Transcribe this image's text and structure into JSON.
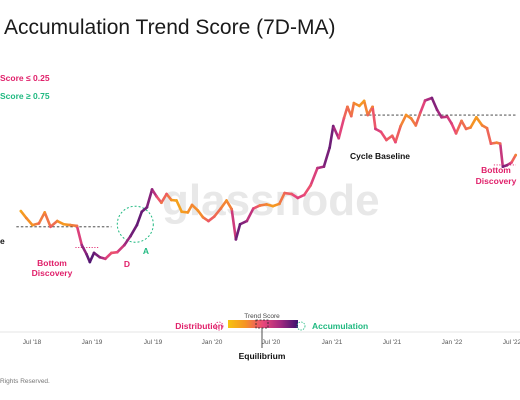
{
  "chart_data": {
    "type": "line",
    "title": "Accumulation Trend Score (7D-MA)",
    "xlabel": "",
    "ylabel": "",
    "y_scale": "log",
    "grid": false,
    "watermark": "glassnode",
    "x_ticks": [
      "Jul '18",
      "Jan '19",
      "Jul '19",
      "Jan '20",
      "Jul '20",
      "Jan '21",
      "Jul '21",
      "Jan '22",
      "Jul '22"
    ],
    "legend": {
      "placement": "top-left",
      "items": [
        {
          "label": "Score ≤ 0.25",
          "color": "#e0206a"
        },
        {
          "label": "Score ≥ 0.75",
          "color": "#1fb980"
        }
      ]
    },
    "colorbar": {
      "title": "Trend Score",
      "left_label": "Distribution",
      "right_label": "Accumulation",
      "center_label": "Equilibrium",
      "stops": [
        "#f6c30f",
        "#f59324",
        "#e9477a",
        "#a3287f",
        "#3a136f"
      ]
    },
    "annotations": [
      {
        "text": "Cycle Baseline",
        "date": "2021-08",
        "color": "#111111"
      },
      {
        "text": "e",
        "date": "2018-05",
        "color": "#111111"
      },
      {
        "text": "Bottom",
        "date": "2018-12",
        "color": "#e0206a"
      },
      {
        "text": "Discovery",
        "date": "2018-12",
        "color": "#e0206a"
      },
      {
        "text": "Bottom",
        "date": "2022-07",
        "color": "#e0206a"
      },
      {
        "text": "Discovery",
        "date": "2022-07",
        "color": "#e0206a"
      },
      {
        "text": "D",
        "date": "2019-03",
        "color": "#e0206a"
      },
      {
        "text": "A",
        "date": "2019-05",
        "color": "#1fb980"
      }
    ],
    "series": [
      {
        "points": [
          [
            "2018-05-15",
            8400,
            0.15
          ],
          [
            "2018-06-01",
            7400,
            0.3
          ],
          [
            "2018-06-20",
            6500,
            0.22
          ],
          [
            "2018-07-10",
            6700,
            0.4
          ],
          [
            "2018-07-28",
            8200,
            0.25
          ],
          [
            "2018-08-15",
            6300,
            0.45
          ],
          [
            "2018-09-05",
            7000,
            0.3
          ],
          [
            "2018-09-25",
            6600,
            0.2
          ],
          [
            "2018-10-15",
            6500,
            0.3
          ],
          [
            "2018-11-05",
            6400,
            0.35
          ],
          [
            "2018-11-20",
            4500,
            0.75
          ],
          [
            "2018-12-05",
            3800,
            0.85
          ],
          [
            "2018-12-15",
            3300,
            0.95
          ],
          [
            "2018-12-28",
            3900,
            0.9
          ],
          [
            "2019-01-15",
            3600,
            0.8
          ],
          [
            "2019-02-01",
            3500,
            0.6
          ],
          [
            "2019-02-20",
            3900,
            0.45
          ],
          [
            "2019-03-10",
            3950,
            0.5
          ],
          [
            "2019-04-01",
            4500,
            0.7
          ],
          [
            "2019-04-20",
            5300,
            0.85
          ],
          [
            "2019-05-10",
            6500,
            0.9
          ],
          [
            "2019-05-25",
            8300,
            0.9
          ],
          [
            "2019-06-10",
            9000,
            0.85
          ],
          [
            "2019-06-26",
            12500,
            0.8
          ],
          [
            "2019-07-10",
            11000,
            0.55
          ],
          [
            "2019-07-25",
            9800,
            0.35
          ],
          [
            "2019-08-10",
            11500,
            0.45
          ],
          [
            "2019-08-25",
            10300,
            0.25
          ],
          [
            "2019-09-10",
            10200,
            0.15
          ],
          [
            "2019-09-26",
            8300,
            0.2
          ],
          [
            "2019-10-15",
            8200,
            0.25
          ],
          [
            "2019-10-28",
            9400,
            0.3
          ],
          [
            "2019-11-15",
            8500,
            0.25
          ],
          [
            "2019-12-01",
            7500,
            0.3
          ],
          [
            "2019-12-18",
            7000,
            0.45
          ],
          [
            "2020-01-05",
            7600,
            0.4
          ],
          [
            "2020-01-25",
            8800,
            0.35
          ],
          [
            "2020-02-12",
            10200,
            0.25
          ],
          [
            "2020-02-28",
            8700,
            0.35
          ],
          [
            "2020-03-12",
            5000,
            0.85
          ],
          [
            "2020-03-25",
            6600,
            0.9
          ],
          [
            "2020-04-15",
            7000,
            0.75
          ],
          [
            "2020-05-05",
            8800,
            0.55
          ],
          [
            "2020-05-25",
            9300,
            0.35
          ],
          [
            "2020-06-15",
            9500,
            0.3
          ],
          [
            "2020-07-05",
            9200,
            0.2
          ],
          [
            "2020-07-25",
            9600,
            0.3
          ],
          [
            "2020-08-10",
            11700,
            0.4
          ],
          [
            "2020-09-01",
            11500,
            0.45
          ],
          [
            "2020-09-20",
            10700,
            0.55
          ],
          [
            "2020-10-10",
            11300,
            0.5
          ],
          [
            "2020-10-30",
            13500,
            0.45
          ],
          [
            "2020-11-20",
            18500,
            0.65
          ],
          [
            "2020-12-10",
            19000,
            0.8
          ],
          [
            "2020-12-28",
            27000,
            0.9
          ],
          [
            "2021-01-08",
            40000,
            0.85
          ],
          [
            "2021-01-25",
            32000,
            0.6
          ],
          [
            "2021-02-10",
            46000,
            0.45
          ],
          [
            "2021-02-21",
            57000,
            0.35
          ],
          [
            "2021-03-05",
            48000,
            0.4
          ],
          [
            "2021-03-13",
            61000,
            0.3
          ],
          [
            "2021-03-30",
            58000,
            0.25
          ],
          [
            "2021-04-14",
            63500,
            0.2
          ],
          [
            "2021-04-25",
            49000,
            0.4
          ],
          [
            "2021-05-10",
            57000,
            0.3
          ],
          [
            "2021-05-19",
            38000,
            0.6
          ],
          [
            "2021-06-05",
            36000,
            0.5
          ],
          [
            "2021-06-22",
            31000,
            0.45
          ],
          [
            "2021-07-10",
            33500,
            0.4
          ],
          [
            "2021-07-20",
            29800,
            0.5
          ],
          [
            "2021-08-05",
            40000,
            0.35
          ],
          [
            "2021-08-22",
            49000,
            0.25
          ],
          [
            "2021-09-07",
            46000,
            0.3
          ],
          [
            "2021-09-21",
            40500,
            0.35
          ],
          [
            "2021-10-05",
            51000,
            0.45
          ],
          [
            "2021-10-20",
            64000,
            0.6
          ],
          [
            "2021-11-10",
            67000,
            0.85
          ],
          [
            "2021-11-26",
            54000,
            0.8
          ],
          [
            "2021-12-10",
            47000,
            0.7
          ],
          [
            "2021-12-28",
            47500,
            0.6
          ],
          [
            "2022-01-10",
            42000,
            0.55
          ],
          [
            "2022-01-24",
            35000,
            0.45
          ],
          [
            "2022-02-10",
            44000,
            0.35
          ],
          [
            "2022-02-24",
            38000,
            0.4
          ],
          [
            "2022-03-10",
            39000,
            0.3
          ],
          [
            "2022-03-28",
            47000,
            0.2
          ],
          [
            "2022-04-15",
            40500,
            0.3
          ],
          [
            "2022-04-30",
            38500,
            0.35
          ],
          [
            "2022-05-12",
            29000,
            0.45
          ],
          [
            "2022-05-30",
            29500,
            0.3
          ],
          [
            "2022-06-10",
            29000,
            0.4
          ],
          [
            "2022-06-18",
            19000,
            0.85
          ],
          [
            "2022-07-01",
            19500,
            0.8
          ],
          [
            "2022-07-15",
            20500,
            0.5
          ],
          [
            "2022-07-28",
            23500,
            0.3
          ]
        ]
      }
    ],
    "reference_lines": [
      {
        "name": "Cycle Baseline",
        "y": 49000,
        "from": "2021-04-01",
        "to": "2022-07-28"
      },
      {
        "y": 6300,
        "from": "2018-05-01",
        "to": "2019-02-20"
      }
    ],
    "highlight_circle": {
      "date": "2019-05-05",
      "value": 6600
    }
  },
  "footer": {
    "copyright": "Rights Reserved."
  }
}
